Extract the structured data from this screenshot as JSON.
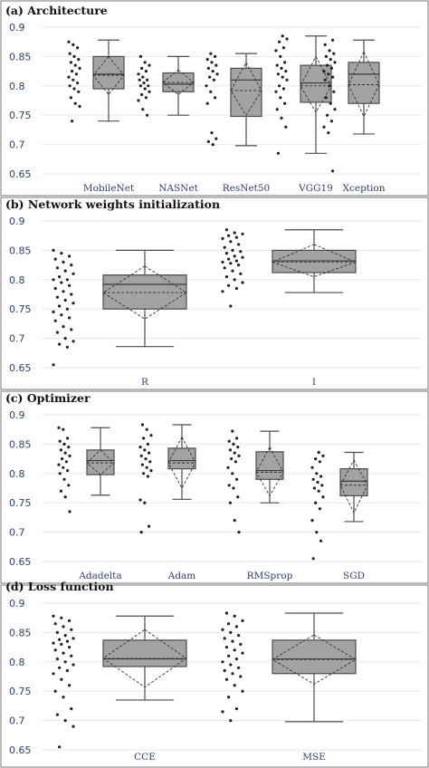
{
  "colors": {
    "box_fill": "#a3a3a3",
    "box_stroke": "#4d4d4d",
    "tick_text": "#2e3f73",
    "points": "#222222"
  },
  "chart_data": [
    {
      "type": "box",
      "title": "(a)  Architecture",
      "ylim": [
        0.63,
        0.92
      ],
      "yticks": [
        "0.65",
        "0.7",
        "0.75",
        "0.8",
        "0.85",
        "0.9"
      ],
      "grid": true,
      "categories": [
        "MobileNet",
        "NASNet",
        "ResNet50",
        "VGG19",
        "Xception"
      ],
      "series": [
        {
          "label": "MobileNet",
          "whisker_low": 0.74,
          "q1": 0.795,
          "median": 0.82,
          "q3": 0.85,
          "whisker_high": 0.878,
          "mean": 0.818,
          "ci": [
            0.785,
            0.85
          ],
          "points": [
            0.875,
            0.87,
            0.865,
            0.855,
            0.85,
            0.845,
            0.84,
            0.835,
            0.83,
            0.825,
            0.82,
            0.815,
            0.81,
            0.805,
            0.8,
            0.795,
            0.79,
            0.78,
            0.77,
            0.765,
            0.74
          ]
        },
        {
          "label": "NASNet",
          "whisker_low": 0.75,
          "q1": 0.79,
          "median": 0.803,
          "q3": 0.822,
          "whisker_high": 0.85,
          "mean": 0.806,
          "ci": [
            0.785,
            0.827
          ],
          "points": [
            0.85,
            0.84,
            0.835,
            0.83,
            0.825,
            0.82,
            0.815,
            0.81,
            0.81,
            0.805,
            0.8,
            0.8,
            0.795,
            0.79,
            0.785,
            0.78,
            0.775,
            0.76,
            0.75
          ]
        },
        {
          "label": "ResNet50",
          "whisker_low": 0.698,
          "q1": 0.748,
          "median": 0.81,
          "q3": 0.83,
          "whisker_high": 0.855,
          "mean": 0.792,
          "ci": [
            0.75,
            0.84
          ],
          "points": [
            0.855,
            0.85,
            0.845,
            0.84,
            0.835,
            0.83,
            0.825,
            0.82,
            0.815,
            0.81,
            0.8,
            0.79,
            0.78,
            0.77,
            0.72,
            0.71,
            0.705,
            0.7
          ]
        },
        {
          "label": "VGG19",
          "whisker_low": 0.685,
          "q1": 0.772,
          "median": 0.805,
          "q3": 0.835,
          "whisker_high": 0.885,
          "mean": 0.8,
          "ci": [
            0.755,
            0.85
          ],
          "points": [
            0.885,
            0.88,
            0.875,
            0.865,
            0.86,
            0.85,
            0.84,
            0.835,
            0.83,
            0.825,
            0.82,
            0.815,
            0.81,
            0.8,
            0.795,
            0.79,
            0.78,
            0.77,
            0.76,
            0.745,
            0.73,
            0.685
          ]
        },
        {
          "label": "Xception",
          "whisker_low": 0.718,
          "q1": 0.77,
          "median": 0.82,
          "q3": 0.84,
          "whisker_high": 0.878,
          "mean": 0.802,
          "ci": [
            0.748,
            0.858
          ],
          "points": [
            0.878,
            0.87,
            0.86,
            0.855,
            0.85,
            0.845,
            0.84,
            0.835,
            0.83,
            0.825,
            0.82,
            0.815,
            0.81,
            0.8,
            0.79,
            0.78,
            0.77,
            0.76,
            0.75,
            0.74,
            0.73,
            0.72,
            0.655
          ]
        }
      ]
    },
    {
      "type": "box",
      "title": "(b)  Network weights initialization",
      "ylim": [
        0.63,
        0.92
      ],
      "yticks": [
        "0.65",
        "0.7",
        "0.75",
        "0.8",
        "0.85",
        "0.9"
      ],
      "grid": true,
      "categories": [
        "R",
        "I"
      ],
      "series": [
        {
          "label": "R",
          "whisker_low": 0.686,
          "q1": 0.75,
          "median": 0.792,
          "q3": 0.808,
          "whisker_high": 0.85,
          "mean": 0.778,
          "ci": [
            0.733,
            0.823
          ],
          "points": [
            0.85,
            0.845,
            0.84,
            0.835,
            0.83,
            0.825,
            0.82,
            0.815,
            0.81,
            0.805,
            0.8,
            0.8,
            0.795,
            0.79,
            0.785,
            0.78,
            0.775,
            0.77,
            0.765,
            0.76,
            0.755,
            0.75,
            0.745,
            0.74,
            0.735,
            0.73,
            0.72,
            0.715,
            0.71,
            0.7,
            0.695,
            0.69,
            0.685,
            0.655
          ]
        },
        {
          "label": "I",
          "whisker_low": 0.778,
          "q1": 0.812,
          "median": 0.832,
          "q3": 0.85,
          "whisker_high": 0.885,
          "mean": 0.83,
          "ci": [
            0.805,
            0.86
          ],
          "points": [
            0.885,
            0.88,
            0.878,
            0.875,
            0.872,
            0.87,
            0.865,
            0.86,
            0.855,
            0.85,
            0.848,
            0.845,
            0.84,
            0.838,
            0.835,
            0.832,
            0.83,
            0.828,
            0.825,
            0.82,
            0.815,
            0.81,
            0.805,
            0.8,
            0.795,
            0.79,
            0.785,
            0.78,
            0.755
          ]
        }
      ]
    },
    {
      "type": "box",
      "title": "(c)  Optimizer",
      "ylim": [
        0.63,
        0.92
      ],
      "yticks": [
        "0.65",
        "0.7",
        "0.75",
        "0.8",
        "0.85",
        "0.9"
      ],
      "grid": true,
      "categories": [
        "Adadelta",
        "Adam",
        "RMSprop",
        "SGD"
      ],
      "series": [
        {
          "label": "Adadelta",
          "whisker_low": 0.763,
          "q1": 0.798,
          "median": 0.822,
          "q3": 0.84,
          "whisker_high": 0.878,
          "mean": 0.818,
          "ci": [
            0.798,
            0.84
          ],
          "points": [
            0.878,
            0.875,
            0.86,
            0.855,
            0.85,
            0.845,
            0.84,
            0.835,
            0.83,
            0.825,
            0.82,
            0.815,
            0.81,
            0.805,
            0.8,
            0.79,
            0.78,
            0.77,
            0.76,
            0.735
          ]
        },
        {
          "label": "Adam",
          "whisker_low": 0.756,
          "q1": 0.808,
          "median": 0.822,
          "q3": 0.843,
          "whisker_high": 0.883,
          "mean": 0.818,
          "ci": [
            0.775,
            0.862
          ],
          "points": [
            0.883,
            0.875,
            0.865,
            0.86,
            0.85,
            0.845,
            0.84,
            0.835,
            0.83,
            0.825,
            0.82,
            0.815,
            0.81,
            0.805,
            0.8,
            0.795,
            0.755,
            0.75,
            0.71,
            0.7
          ]
        },
        {
          "label": "RMSprop",
          "whisker_low": 0.75,
          "q1": 0.79,
          "median": 0.805,
          "q3": 0.837,
          "whisker_high": 0.872,
          "mean": 0.802,
          "ci": [
            0.762,
            0.845
          ],
          "points": [
            0.872,
            0.86,
            0.855,
            0.85,
            0.845,
            0.84,
            0.835,
            0.83,
            0.825,
            0.82,
            0.81,
            0.8,
            0.79,
            0.78,
            0.775,
            0.76,
            0.75,
            0.72,
            0.7
          ]
        },
        {
          "label": "SGD",
          "whisker_low": 0.718,
          "q1": 0.762,
          "median": 0.787,
          "q3": 0.808,
          "whisker_high": 0.836,
          "mean": 0.78,
          "ci": [
            0.733,
            0.823
          ],
          "points": [
            0.836,
            0.83,
            0.825,
            0.82,
            0.81,
            0.8,
            0.795,
            0.79,
            0.785,
            0.78,
            0.775,
            0.77,
            0.76,
            0.75,
            0.74,
            0.72,
            0.7,
            0.685,
            0.655
          ]
        }
      ]
    },
    {
      "type": "box",
      "title": "(d)  Loss function",
      "ylim": [
        0.63,
        0.92
      ],
      "yticks": [
        "0.65",
        "0.7",
        "0.75",
        "0.8",
        "0.85",
        "0.9"
      ],
      "grid": true,
      "categories": [
        "CCE",
        "MSE"
      ],
      "series": [
        {
          "label": "CCE",
          "whisker_low": 0.735,
          "q1": 0.792,
          "median": 0.805,
          "q3": 0.837,
          "whisker_high": 0.878,
          "mean": 0.806,
          "ci": [
            0.757,
            0.855
          ],
          "points": [
            0.878,
            0.875,
            0.87,
            0.865,
            0.86,
            0.855,
            0.85,
            0.845,
            0.84,
            0.838,
            0.835,
            0.832,
            0.83,
            0.825,
            0.82,
            0.815,
            0.81,
            0.805,
            0.8,
            0.795,
            0.79,
            0.785,
            0.78,
            0.77,
            0.76,
            0.75,
            0.74,
            0.72,
            0.71,
            0.7,
            0.69,
            0.655
          ]
        },
        {
          "label": "MSE",
          "whisker_low": 0.698,
          "q1": 0.78,
          "median": 0.805,
          "q3": 0.837,
          "whisker_high": 0.883,
          "mean": 0.804,
          "ci": [
            0.762,
            0.846
          ],
          "points": [
            0.883,
            0.878,
            0.87,
            0.865,
            0.86,
            0.855,
            0.85,
            0.845,
            0.84,
            0.835,
            0.83,
            0.825,
            0.82,
            0.815,
            0.81,
            0.805,
            0.8,
            0.795,
            0.79,
            0.785,
            0.78,
            0.775,
            0.77,
            0.76,
            0.75,
            0.74,
            0.72,
            0.715,
            0.7
          ]
        }
      ]
    }
  ]
}
